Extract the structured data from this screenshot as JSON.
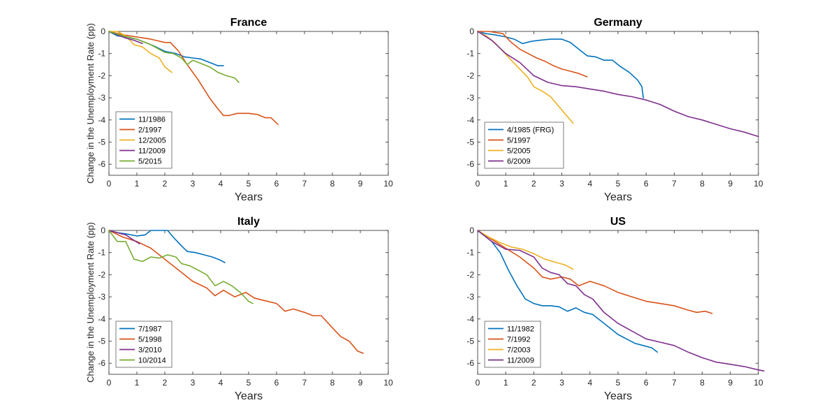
{
  "figure": {
    "y_label": "Change in the Unemployment Rate (pp)",
    "x_label": "Years"
  },
  "colors": {
    "blue": "#0072BD",
    "orange": "#D95319",
    "yellow": "#EDB120",
    "purple": "#7E2F8E",
    "green": "#77AC30",
    "axis": "#262626"
  },
  "chart_data": [
    {
      "type": "line",
      "title": "France",
      "xlabel": "Years",
      "ylabel": "Change in the Unemployment Rate (pp)",
      "xlim": [
        0,
        10
      ],
      "ylim": [
        -6.5,
        0
      ],
      "xticks": [
        0,
        1,
        2,
        3,
        4,
        5,
        6,
        7,
        8,
        9,
        10
      ],
      "yticks": [
        0,
        -1,
        -2,
        -3,
        -4,
        -5,
        -6
      ],
      "grid": false,
      "legend_position": "bottom-left",
      "series": [
        {
          "name": "11/1986",
          "color": "#0072BD",
          "x": [
            0,
            0.3,
            0.6,
            1.0,
            1.3,
            1.6,
            2.0,
            2.4,
            2.7,
            3.0,
            3.3,
            3.6,
            3.9,
            4.1
          ],
          "y": [
            0,
            -0.2,
            -0.25,
            -0.35,
            -0.5,
            -0.65,
            -0.9,
            -1.0,
            -1.15,
            -1.2,
            -1.25,
            -1.4,
            -1.55,
            -1.55
          ]
        },
        {
          "name": "2/1997",
          "color": "#D95319",
          "x": [
            0,
            0.5,
            1.0,
            1.5,
            2.0,
            2.2,
            2.5,
            2.8,
            3.2,
            3.6,
            3.9,
            4.1,
            4.3,
            4.6,
            5.0,
            5.3,
            5.6,
            5.8,
            6.05
          ],
          "y": [
            0,
            -0.15,
            -0.25,
            -0.35,
            -0.5,
            -0.5,
            -0.9,
            -1.5,
            -2.2,
            -3.0,
            -3.5,
            -3.8,
            -3.8,
            -3.7,
            -3.7,
            -3.75,
            -3.9,
            -3.9,
            -4.2
          ]
        },
        {
          "name": "12/2005",
          "color": "#EDB120",
          "x": [
            0,
            0.3,
            0.6,
            0.9,
            1.2,
            1.5,
            1.8,
            2.0,
            2.25
          ],
          "y": [
            0,
            0,
            -0.2,
            -0.6,
            -0.7,
            -1.0,
            -1.2,
            -1.6,
            -1.85
          ]
        },
        {
          "name": "11/2009",
          "color": "#7E2F8E",
          "x": [
            0,
            0.3,
            0.6,
            0.9,
            1.2
          ],
          "y": [
            0,
            -0.15,
            -0.3,
            -0.4,
            -0.55
          ]
        },
        {
          "name": "5/2015",
          "color": "#77AC30",
          "x": [
            0,
            0.5,
            1.0,
            1.5,
            2.0,
            2.3,
            2.6,
            2.8,
            3.0,
            3.3,
            3.6,
            3.9,
            4.2,
            4.5,
            4.65
          ],
          "y": [
            0,
            -0.2,
            -0.35,
            -0.6,
            -0.95,
            -1.0,
            -1.2,
            -1.5,
            -1.3,
            -1.45,
            -1.6,
            -1.85,
            -2.0,
            -2.1,
            -2.3
          ]
        }
      ]
    },
    {
      "type": "line",
      "title": "Germany",
      "xlabel": "Years",
      "ylabel": "",
      "xlim": [
        0,
        10
      ],
      "ylim": [
        -6.5,
        0
      ],
      "xticks": [
        0,
        1,
        2,
        3,
        4,
        5,
        6,
        7,
        8,
        9,
        10
      ],
      "yticks": [
        0,
        -1,
        -2,
        -3,
        -4,
        -5,
        -6
      ],
      "grid": false,
      "legend_position": "bottom-left",
      "series": [
        {
          "name": "4/1985 (FRG)",
          "color": "#0072BD",
          "x": [
            0,
            0.3,
            0.6,
            1.0,
            1.3,
            1.6,
            1.9,
            2.2,
            2.6,
            3.0,
            3.3,
            3.6,
            3.9,
            4.2,
            4.5,
            4.8,
            5.1,
            5.4,
            5.7,
            5.85,
            5.9
          ],
          "y": [
            0,
            -0.1,
            -0.15,
            -0.25,
            -0.35,
            -0.55,
            -0.45,
            -0.4,
            -0.35,
            -0.35,
            -0.5,
            -0.8,
            -1.1,
            -1.15,
            -1.3,
            -1.3,
            -1.6,
            -1.85,
            -2.2,
            -2.5,
            -3.0
          ]
        },
        {
          "name": "5/1997",
          "color": "#D95319",
          "x": [
            0,
            0.4,
            0.9,
            1.2,
            1.5,
            1.8,
            2.1,
            2.4,
            2.7,
            3.0,
            3.3,
            3.6,
            3.9
          ],
          "y": [
            0,
            0,
            -0.1,
            -0.5,
            -0.8,
            -1.0,
            -1.2,
            -1.35,
            -1.55,
            -1.7,
            -1.8,
            -1.9,
            -2.05
          ]
        },
        {
          "name": "5/2005",
          "color": "#EDB120",
          "x": [
            0,
            0.3,
            0.6,
            0.9,
            1.2,
            1.5,
            1.8,
            2.0,
            2.3,
            2.6,
            2.9,
            3.1,
            3.4
          ],
          "y": [
            0,
            -0.2,
            -0.5,
            -0.9,
            -1.3,
            -1.7,
            -2.1,
            -2.5,
            -2.7,
            -2.95,
            -3.4,
            -3.7,
            -4.15
          ]
        },
        {
          "name": "6/2009",
          "color": "#7E2F8E",
          "x": [
            0,
            0.5,
            1.0,
            1.5,
            2.0,
            2.5,
            3.0,
            3.5,
            4.0,
            4.5,
            5.0,
            5.5,
            6.0,
            6.5,
            7.0,
            7.5,
            8.0,
            8.5,
            9.0,
            9.5,
            10.0
          ],
          "y": [
            0,
            -0.4,
            -1.0,
            -1.4,
            -2.0,
            -2.3,
            -2.45,
            -2.5,
            -2.6,
            -2.7,
            -2.85,
            -2.95,
            -3.1,
            -3.3,
            -3.6,
            -3.85,
            -4.0,
            -4.2,
            -4.4,
            -4.55,
            -4.75
          ]
        }
      ]
    },
    {
      "type": "line",
      "title": "Italy",
      "xlabel": "Years",
      "ylabel": "Change in the Unemployment Rate (pp)",
      "xlim": [
        0,
        10
      ],
      "ylim": [
        -6.5,
        0
      ],
      "xticks": [
        0,
        1,
        2,
        3,
        4,
        5,
        6,
        7,
        8,
        9,
        10
      ],
      "yticks": [
        0,
        -1,
        -2,
        -3,
        -4,
        -5,
        -6
      ],
      "grid": false,
      "legend_position": "bottom-left",
      "series": [
        {
          "name": "7/1987",
          "color": "#0072BD",
          "x": [
            0,
            0.3,
            0.6,
            1.0,
            1.3,
            1.5,
            1.8,
            2.1,
            2.3,
            2.6,
            2.8,
            3.1,
            3.4,
            3.7,
            4.0,
            4.15
          ],
          "y": [
            0,
            -0.1,
            -0.15,
            -0.25,
            -0.2,
            0,
            0,
            0,
            -0.3,
            -0.7,
            -0.95,
            -1.0,
            -1.1,
            -1.2,
            -1.35,
            -1.45
          ]
        },
        {
          "name": "5/1998",
          "color": "#D95319",
          "x": [
            0,
            0.5,
            1.0,
            1.5,
            2.0,
            2.5,
            3.0,
            3.5,
            3.8,
            4.1,
            4.5,
            4.9,
            5.2,
            5.5,
            6.0,
            6.3,
            6.6,
            7.0,
            7.3,
            7.6,
            8.0,
            8.3,
            8.6,
            8.9,
            9.1
          ],
          "y": [
            0,
            -0.3,
            -0.5,
            -0.8,
            -1.3,
            -1.8,
            -2.3,
            -2.6,
            -2.95,
            -2.7,
            -3.0,
            -2.8,
            -3.05,
            -3.15,
            -3.3,
            -3.65,
            -3.55,
            -3.7,
            -3.85,
            -3.85,
            -4.4,
            -4.8,
            -5.0,
            -5.45,
            -5.55
          ]
        },
        {
          "name": "3/2010",
          "color": "#7E2F8E",
          "x": [
            0,
            0.3,
            0.6,
            0.9,
            1.1
          ],
          "y": [
            0,
            -0.1,
            -0.2,
            -0.45,
            -0.6
          ]
        },
        {
          "name": "10/2014",
          "color": "#77AC30",
          "x": [
            0,
            0.3,
            0.6,
            0.9,
            1.2,
            1.5,
            1.8,
            2.1,
            2.4,
            2.6,
            2.9,
            3.2,
            3.5,
            3.8,
            4.1,
            4.4,
            4.7,
            5.0,
            5.15
          ],
          "y": [
            0,
            -0.5,
            -0.5,
            -1.3,
            -1.4,
            -1.2,
            -1.25,
            -1.1,
            -1.2,
            -1.5,
            -1.6,
            -1.8,
            -2.0,
            -2.5,
            -2.3,
            -2.5,
            -2.8,
            -3.2,
            -3.3
          ]
        }
      ]
    },
    {
      "type": "line",
      "title": "US",
      "xlabel": "Years",
      "ylabel": "",
      "xlim": [
        0,
        10
      ],
      "ylim": [
        -6.5,
        0
      ],
      "xticks": [
        0,
        1,
        2,
        3,
        4,
        5,
        6,
        7,
        8,
        9,
        10
      ],
      "yticks": [
        0,
        -1,
        -2,
        -3,
        -4,
        -5,
        -6
      ],
      "grid": false,
      "legend_position": "bottom-left",
      "series": [
        {
          "name": "11/1982",
          "color": "#0072BD",
          "x": [
            0,
            0.5,
            0.8,
            1.1,
            1.4,
            1.7,
            2.0,
            2.3,
            2.6,
            2.9,
            3.2,
            3.5,
            3.8,
            4.1,
            4.4,
            4.7,
            5.0,
            5.3,
            5.6,
            5.9,
            6.2,
            6.4
          ],
          "y": [
            0,
            -0.5,
            -1.0,
            -1.8,
            -2.5,
            -3.1,
            -3.3,
            -3.4,
            -3.4,
            -3.45,
            -3.65,
            -3.5,
            -3.7,
            -3.8,
            -4.1,
            -4.4,
            -4.7,
            -4.9,
            -5.1,
            -5.2,
            -5.3,
            -5.5
          ]
        },
        {
          "name": "7/1992",
          "color": "#D95319",
          "x": [
            0,
            0.5,
            1.0,
            1.5,
            2.0,
            2.3,
            2.6,
            3.0,
            3.3,
            3.6,
            4.0,
            4.5,
            5.0,
            5.5,
            6.0,
            6.5,
            7.0,
            7.5,
            7.8,
            8.1,
            8.35
          ],
          "y": [
            0,
            -0.4,
            -0.8,
            -1.2,
            -1.7,
            -2.1,
            -2.2,
            -2.1,
            -2.2,
            -2.5,
            -2.3,
            -2.5,
            -2.8,
            -3.0,
            -3.2,
            -3.3,
            -3.4,
            -3.6,
            -3.7,
            -3.65,
            -3.75
          ]
        },
        {
          "name": "7/2003",
          "color": "#EDB120",
          "x": [
            0,
            0.4,
            0.8,
            1.2,
            1.6,
            2.0,
            2.4,
            2.8,
            3.1,
            3.4
          ],
          "y": [
            0,
            -0.3,
            -0.55,
            -0.75,
            -0.85,
            -1.05,
            -1.3,
            -1.45,
            -1.55,
            -1.75
          ]
        },
        {
          "name": "11/2009",
          "color": "#7E2F8E",
          "x": [
            0,
            0.5,
            1.0,
            1.5,
            2.0,
            2.3,
            2.6,
            2.9,
            3.2,
            3.5,
            3.8,
            4.1,
            4.5,
            5.0,
            5.5,
            6.0,
            6.5,
            7.0,
            7.5,
            8.0,
            8.5,
            9.0,
            9.5,
            10.0,
            10.2
          ],
          "y": [
            0,
            -0.5,
            -0.85,
            -0.9,
            -1.2,
            -1.7,
            -1.9,
            -2.0,
            -2.4,
            -2.5,
            -2.9,
            -3.1,
            -3.7,
            -4.2,
            -4.55,
            -4.9,
            -5.05,
            -5.2,
            -5.5,
            -5.75,
            -5.95,
            -6.05,
            -6.15,
            -6.3,
            -6.35
          ]
        }
      ]
    }
  ]
}
